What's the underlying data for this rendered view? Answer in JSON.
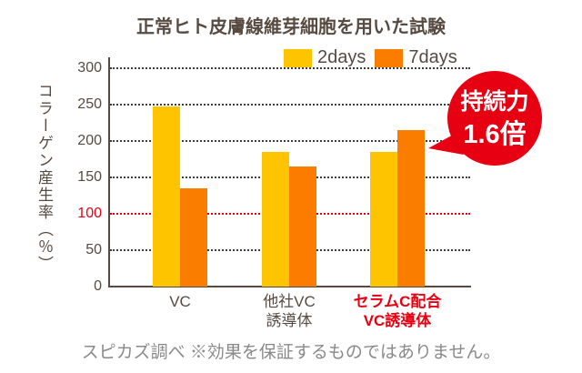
{
  "title": "正常ヒト皮膚線維芽細胞を用いた試験",
  "legend": [
    {
      "label": "2days",
      "color": "#FFC400"
    },
    {
      "label": "7days",
      "color": "#FB7D00"
    }
  ],
  "y_axis": {
    "title": "コラーゲン産生率（％）",
    "ticks": [
      300,
      250,
      200,
      150,
      100,
      50,
      0
    ],
    "highlight_tick": 100,
    "highlight_color": "#E60012"
  },
  "chart_data": {
    "type": "bar",
    "title": "正常ヒト皮膚線維芽細胞を用いた試験",
    "ylabel": "コラーゲン産生率（％）",
    "ylim": [
      0,
      300
    ],
    "grid": true,
    "legend_position": "top-right",
    "categories": [
      "VC",
      "他社VC誘導体",
      "セラムC配合VC誘導体"
    ],
    "category_lines": [
      [
        "VC"
      ],
      [
        "他社VC",
        "誘導体"
      ],
      [
        "セラムC配合",
        "VC誘導体"
      ]
    ],
    "category_colors": [
      "#574A41",
      "#574A41",
      "#E60012"
    ],
    "series": [
      {
        "name": "2days",
        "color": "#FFC400",
        "values": [
          248,
          185,
          185
        ]
      },
      {
        "name": "7days",
        "color": "#FB7D00",
        "values": [
          135,
          165,
          215
        ]
      }
    ]
  },
  "badge": {
    "line1": "持続力",
    "line2": "1.6倍",
    "color": "#E60012",
    "text_color": "#FFFFFF"
  },
  "footer": "スピカズ調べ ※効果を保証するものではありません。",
  "colors": {
    "text_dark": "#574A41",
    "grid": "#3C3C3C",
    "footer_gray": "#898989",
    "background": "#FFFFFF"
  }
}
